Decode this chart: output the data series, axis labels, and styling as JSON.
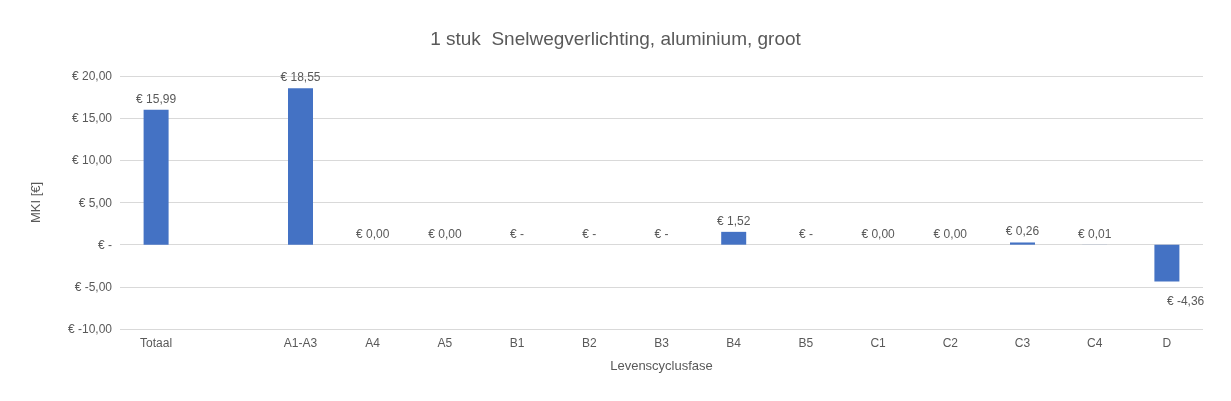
{
  "chart_data": {
    "type": "bar",
    "title": "1 stuk  Snelwegverlichting, aluminium, groot",
    "xlabel": "Levenscyclusfase",
    "ylabel": "MKI [€]",
    "categories": [
      "Totaal",
      null,
      "A1-A3",
      "A4",
      "A5",
      "B1",
      "B2",
      "B3",
      "B4",
      "B5",
      "C1",
      "C2",
      "C3",
      "C4",
      "D"
    ],
    "values": [
      15.99,
      null,
      18.55,
      0,
      0,
      0,
      0,
      0,
      1.52,
      0,
      0,
      0,
      0.26,
      0.01,
      -4.36
    ],
    "value_labels": [
      "€ 15,99",
      null,
      "€ 18,55",
      "€ 0,00",
      "€ 0,00",
      "€ -",
      "€ -",
      "€ -",
      "€ 1,52",
      "€ -",
      "€ 0,00",
      "€ 0,00",
      "€ 0,26",
      "€ 0,01",
      "€ -4,36"
    ],
    "color": "#4472c4",
    "ylim": [
      -10,
      20
    ],
    "yticks": [
      {
        "value": -10,
        "label": "€ -10,00"
      },
      {
        "value": -5,
        "label": "€ -5,00"
      },
      {
        "value": 0,
        "label": "€ -"
      },
      {
        "value": 5,
        "label": "€ 5,00"
      },
      {
        "value": 10,
        "label": "€ 10,00"
      },
      {
        "value": 15,
        "label": "€ 15,00"
      },
      {
        "value": 20,
        "label": "€ 20,00"
      }
    ],
    "grid": "y"
  }
}
